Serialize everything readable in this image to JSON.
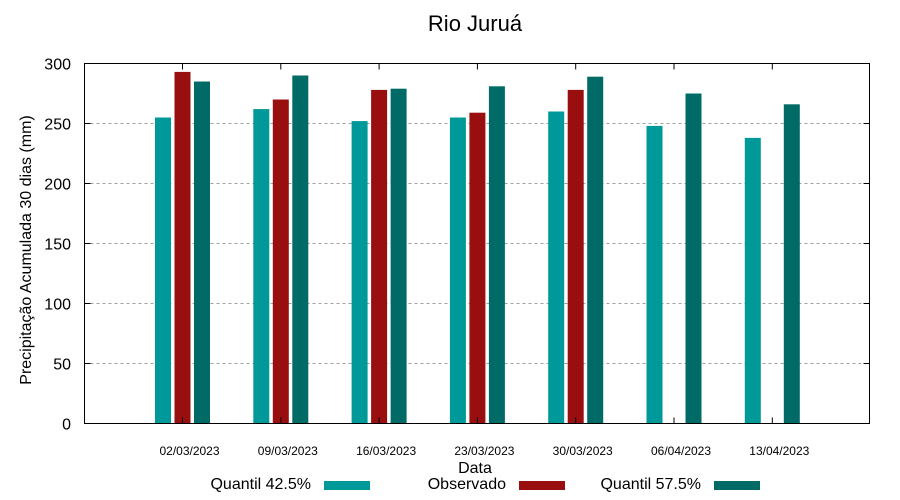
{
  "chart_data": {
    "type": "bar",
    "title": "Rio Juruá",
    "xlabel": "Data",
    "ylabel": "Precipitação Acumulada 30 dias (mm)",
    "ylim": [
      0,
      300
    ],
    "yticks": [
      0,
      50,
      100,
      150,
      200,
      250,
      300
    ],
    "grid": true,
    "legend_position": "bottom",
    "categories": [
      "02/03/2023",
      "09/03/2023",
      "16/03/2023",
      "23/03/2023",
      "30/03/2023",
      "06/04/2023",
      "13/04/2023"
    ],
    "series": [
      {
        "name": "Quantil 42.5%",
        "color": "#009999",
        "values": [
          255,
          262,
          252,
          255,
          260,
          248,
          238
        ]
      },
      {
        "name": "Observado",
        "color": "#990f0f",
        "values": [
          293,
          270,
          278,
          259,
          278,
          null,
          null
        ]
      },
      {
        "name": "Quantil 57.5%",
        "color": "#006b66",
        "values": [
          285,
          290,
          279,
          281,
          289,
          275,
          266
        ]
      }
    ]
  }
}
